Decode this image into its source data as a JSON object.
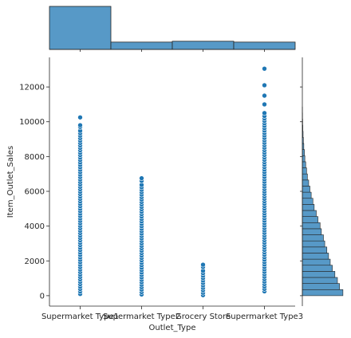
{
  "chart_data": {
    "type": "scatter",
    "subtype": "jointplot",
    "xlabel": "Outlet_Type",
    "ylabel": "Item_Outlet_Sales",
    "categories": [
      "Supermarket Type1",
      "Supermarket Type2",
      "Grocery Store",
      "Supermarket Type3"
    ],
    "yticks": [
      0,
      2000,
      4000,
      6000,
      8000,
      10000,
      12000
    ],
    "ylim": [
      -600,
      13700
    ],
    "grid": false,
    "color": "#1f77b4",
    "hist_color": "#5799c7",
    "series": [
      {
        "category": "Supermarket Type1",
        "x": 0,
        "y_min": 100,
        "y_max": 10250,
        "outliers": [
          9700,
          9800,
          10250
        ]
      },
      {
        "category": "Supermarket Type2",
        "x": 1,
        "y_min": 70,
        "y_max": 6750,
        "outliers": [
          6600,
          6750
        ]
      },
      {
        "category": "Grocery Store",
        "x": 2,
        "y_min": 30,
        "y_max": 1780,
        "outliers": [
          1650,
          1780
        ]
      },
      {
        "category": "Supermarket Type3",
        "x": 3,
        "y_min": 250,
        "y_max": 13050,
        "outliers": [
          10500,
          11000,
          11500,
          12100,
          13050
        ]
      }
    ],
    "marginal_x": {
      "categories": [
        "Supermarket Type1",
        "Supermarket Type2",
        "Grocery Store",
        "Supermarket Type3"
      ],
      "relative_counts": [
        1.0,
        0.17,
        0.19,
        0.17
      ]
    },
    "marginal_y": {
      "bin_start": 0,
      "bin_width": 350,
      "relative_counts": [
        0.96,
        0.88,
        0.83,
        0.77,
        0.71,
        0.66,
        0.62,
        0.58,
        0.53,
        0.5,
        0.45,
        0.42,
        0.37,
        0.33,
        0.28,
        0.25,
        0.21,
        0.18,
        0.15,
        0.12,
        0.1,
        0.08,
        0.06,
        0.05,
        0.035,
        0.025,
        0.018,
        0.012,
        0.008,
        0.005,
        0.003
      ]
    }
  }
}
